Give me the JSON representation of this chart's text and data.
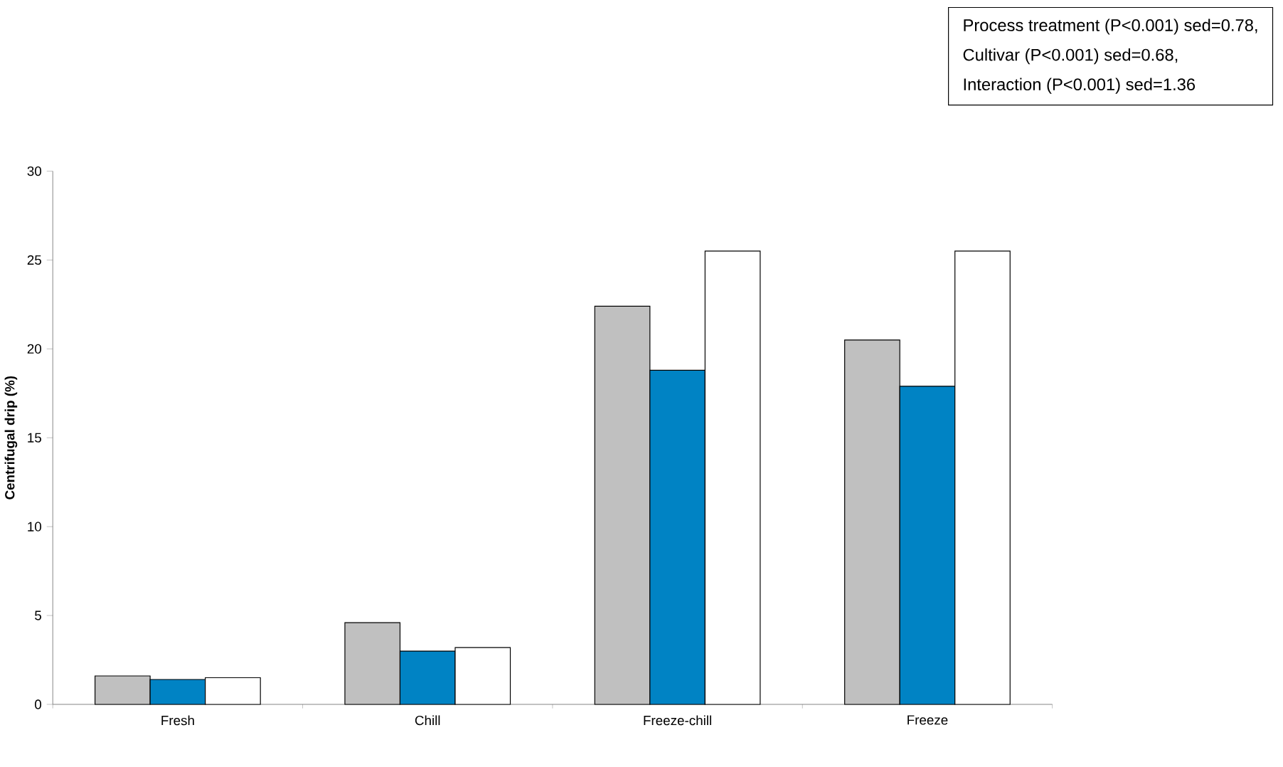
{
  "chart_data": {
    "type": "bar",
    "ylabel": "Centrifugal drip (%)",
    "categories": [
      "Fresh",
      "Chill",
      "Freeze-chill",
      "Freeze"
    ],
    "series": [
      {
        "color": "#c0c0c0",
        "values": [
          1.6,
          4.6,
          22.4,
          20.5
        ]
      },
      {
        "color": "#0083c4",
        "values": [
          1.4,
          3.0,
          18.8,
          17.9
        ]
      },
      {
        "color": "#ffffff",
        "values": [
          1.5,
          3.2,
          25.5,
          25.5
        ]
      }
    ],
    "ylim": [
      0,
      30
    ],
    "yticks": [
      0,
      5,
      10,
      15,
      20,
      25,
      30
    ],
    "annotations": [
      "Process treatment (P<0.001) sed=0.78,",
      "Cultivar (P<0.001) sed=0.68,",
      "Interaction (P<0.001) sed=1.36"
    ]
  }
}
